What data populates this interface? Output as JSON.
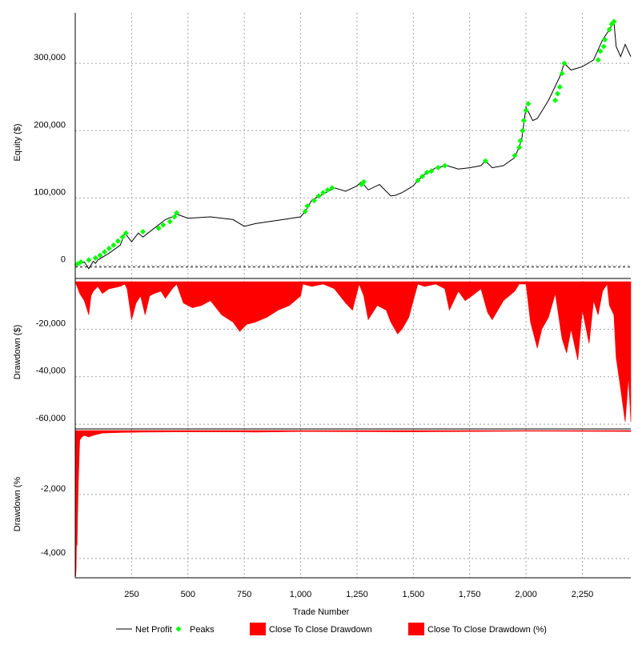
{
  "chart_data": {
    "type": "line",
    "x_label": "Trade Number",
    "x_ticks": [
      250,
      500,
      750,
      1000,
      1250,
      1500,
      1750,
      2000,
      2250
    ],
    "x_tick_labels": [
      "250",
      "500",
      "750",
      "1,000",
      "1,250",
      "1,500",
      "1,750",
      "2,000",
      "2,250"
    ],
    "x_range": [
      0,
      2465
    ],
    "legend_position": "bottom",
    "legend": [
      {
        "label": "Net Profit",
        "color": "#000000",
        "kind": "line"
      },
      {
        "label": "Peaks",
        "color": "#00ff00",
        "kind": "diamond"
      },
      {
        "label": "Close To Close Drawdown",
        "color": "#ff0000",
        "kind": "box"
      },
      {
        "label": "Close To Close Drawdown (%)",
        "color": "#ff0000",
        "kind": "box"
      }
    ],
    "panels": [
      {
        "id": "equity",
        "ylabel": "Equity ($)",
        "ylim": [
          -10000,
          375000
        ],
        "y_ticks": [
          0,
          100000,
          200000,
          300000
        ],
        "y_tick_labels": [
          "0",
          "100,000",
          "200,000",
          "300,000"
        ],
        "series": [
          {
            "name": "Net Profit",
            "type": "line",
            "color": "#000000",
            "x": [
              0,
              20,
              40,
              60,
              80,
              90,
              100,
              150,
              200,
              220,
              250,
              280,
              300,
              350,
              400,
              430,
              450,
              500,
              600,
              700,
              750,
              800,
              900,
              1000,
              1020,
              1050,
              1100,
              1150,
              1200,
              1250,
              1270,
              1300,
              1350,
              1400,
              1420,
              1450,
              1500,
              1520,
              1550,
              1600,
              1650,
              1700,
              1750,
              1800,
              1820,
              1850,
              1900,
              1950,
              1980,
              2000,
              2030,
              2050,
              2100,
              2150,
              2170,
              2200,
              2250,
              2300,
              2340,
              2370,
              2390,
              2400,
              2420,
              2440,
              2465
            ],
            "y": [
              0,
              2000,
              5000,
              -5000,
              6000,
              3000,
              8000,
              18000,
              30000,
              48000,
              35000,
              48000,
              42000,
              55000,
              68000,
              72000,
              76000,
              70000,
              72000,
              68000,
              58000,
              62000,
              67000,
              72000,
              80000,
              97000,
              106000,
              115000,
              110000,
              118000,
              124000,
              112000,
              120000,
              103000,
              104000,
              108000,
              118000,
              126000,
              135000,
              145000,
              148000,
              143000,
              145000,
              148000,
              155000,
              145000,
              148000,
              160000,
              185000,
              235000,
              215000,
              218000,
              245000,
              280000,
              300000,
              290000,
              295000,
              305000,
              335000,
              350000,
              362000,
              325000,
              310000,
              328000,
              310000
            ]
          },
          {
            "name": "Peaks",
            "type": "scatter",
            "color": "#00ff00",
            "x": [
              10,
              25,
              60,
              90,
              110,
              130,
              150,
              170,
              190,
              210,
              225,
              300,
              370,
              390,
              420,
              440,
              450,
              1020,
              1030,
              1060,
              1080,
              1100,
              1120,
              1140,
              1270,
              1280,
              1520,
              1540,
              1560,
              1580,
              1610,
              1640,
              1820,
              1950,
              1970,
              1975,
              1985,
              1990,
              2000,
              2010,
              2130,
              2140,
              2150,
              2160,
              2170,
              2320,
              2330,
              2345,
              2350,
              2370,
              2380,
              2390
            ],
            "y": [
              2000,
              5000,
              8000,
              11000,
              15000,
              20000,
              25000,
              30000,
              36000,
              42000,
              48000,
              50000,
              55000,
              60000,
              65000,
              72000,
              78000,
              80000,
              88000,
              96000,
              103000,
              108000,
              112000,
              115000,
              120000,
              124000,
              126000,
              132000,
              138000,
              140000,
              145000,
              148000,
              155000,
              163000,
              175000,
              185000,
              200000,
              215000,
              230000,
              240000,
              245000,
              255000,
              265000,
              285000,
              300000,
              305000,
              318000,
              325000,
              335000,
              350000,
              358000,
              362000
            ]
          }
        ]
      },
      {
        "id": "drawdown-dollars",
        "ylabel": "Drawdown ($)",
        "ylim": [
          -62000,
          0
        ],
        "y_ticks": [
          -20000,
          -40000,
          -60000
        ],
        "y_tick_labels": [
          "-20,000",
          "-40,000",
          "-60,000"
        ],
        "series": [
          {
            "name": "Close To Close Drawdown",
            "type": "area",
            "color": "#ff0000",
            "x": [
              0,
              20,
              40,
              60,
              70,
              80,
              100,
              120,
              150,
              200,
              220,
              230,
              250,
              270,
              290,
              310,
              330,
              350,
              380,
              400,
              430,
              450,
              480,
              520,
              560,
              600,
              650,
              700,
              730,
              760,
              800,
              850,
              900,
              950,
              1000,
              1010,
              1050,
              1100,
              1150,
              1200,
              1230,
              1260,
              1280,
              1300,
              1340,
              1380,
              1400,
              1430,
              1450,
              1480,
              1500,
              1520,
              1550,
              1600,
              1640,
              1660,
              1700,
              1730,
              1760,
              1800,
              1830,
              1850,
              1900,
              1950,
              1970,
              2000,
              2020,
              2050,
              2070,
              2100,
              2130,
              2160,
              2180,
              2200,
              2230,
              2250,
              2280,
              2300,
              2320,
              2340,
              2360,
              2370,
              2390,
              2400,
              2420,
              2440,
              2455,
              2465
            ],
            "y": [
              0,
              -5000,
              -8000,
              -14000,
              -6000,
              -4000,
              -2000,
              -5000,
              -3000,
              -2000,
              -1000,
              -3000,
              -16000,
              -9000,
              -6000,
              -14000,
              -6000,
              -5000,
              -4000,
              -7000,
              -3000,
              -1000,
              -9000,
              -11000,
              -10000,
              -8000,
              -14000,
              -17000,
              -21000,
              -18000,
              -17000,
              -15000,
              -12000,
              -10000,
              -6000,
              -1000,
              -2000,
              -1000,
              -3000,
              -9000,
              -12000,
              -1000,
              -6000,
              -16000,
              -10000,
              -12000,
              -17000,
              -22000,
              -20000,
              -15000,
              -8000,
              -1000,
              -2000,
              -1000,
              -3000,
              -12000,
              -4000,
              -8000,
              -6000,
              -3000,
              -13000,
              -16000,
              -8000,
              -4000,
              -1000,
              -1000,
              -17000,
              -28000,
              -20000,
              -15000,
              -5000,
              -24000,
              -30000,
              -20000,
              -33000,
              -12000,
              -26000,
              -8000,
              -14000,
              -4000,
              -1000,
              -10000,
              -14000,
              -32000,
              -45000,
              -59000,
              -40000,
              -59000
            ]
          }
        ]
      },
      {
        "id": "drawdown-percent",
        "ylabel": "Drawdown (%",
        "ylim": [
          -4600,
          0
        ],
        "y_ticks": [
          -2000,
          -4000
        ],
        "y_tick_labels": [
          "-2,000",
          "-4,000"
        ],
        "series": [
          {
            "name": "Close To Close Drawdown (%)",
            "type": "area",
            "color": "#ff0000",
            "x": [
              0,
              2,
              4,
              6,
              8,
              10,
              14,
              20,
              30,
              40,
              60,
              80,
              120,
              200,
              300,
              500,
              700,
              800,
              1000,
              1500,
              2000,
              2465
            ],
            "y": [
              0,
              -4550,
              -4300,
              -3200,
              -3600,
              -2800,
              -1600,
              -300,
              -200,
              -150,
              -200,
              -150,
              -80,
              -60,
              -50,
              -40,
              -40,
              -50,
              -30,
              -40,
              -20,
              -30
            ]
          }
        ]
      }
    ]
  }
}
